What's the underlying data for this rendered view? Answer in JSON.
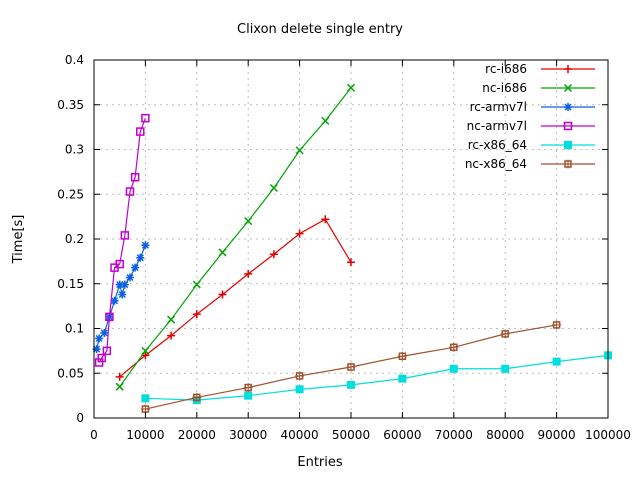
{
  "window": {
    "title": "Clixon delete single entry"
  },
  "chart_data": {
    "type": "line",
    "title": "Clixon delete single entry",
    "xlabel": "Entries",
    "ylabel": "Time[s]",
    "xlim": [
      0,
      100000
    ],
    "ylim": [
      0,
      0.4
    ],
    "xticks": [
      0,
      10000,
      20000,
      30000,
      40000,
      50000,
      60000,
      70000,
      80000,
      90000,
      100000
    ],
    "yticks": [
      0,
      0.05,
      0.1,
      0.15,
      0.2,
      0.25,
      0.3,
      0.35,
      0.4
    ],
    "grid": true,
    "grid_style": "dotted-gray",
    "legend_position": "top-right-inside",
    "series": [
      {
        "name": "rc-i686",
        "color": "#e60000",
        "marker": "plus",
        "x": [
          5000,
          10000,
          15000,
          20000,
          25000,
          30000,
          35000,
          40000,
          45000,
          50000
        ],
        "y": [
          0.046,
          0.07,
          0.092,
          0.116,
          0.138,
          0.161,
          0.183,
          0.206,
          0.222,
          0.174
        ]
      },
      {
        "name": "nc-i686",
        "color": "#00a400",
        "marker": "cross",
        "x": [
          5000,
          10000,
          15000,
          20000,
          25000,
          30000,
          35000,
          40000,
          45000,
          50000
        ],
        "y": [
          0.035,
          0.075,
          0.11,
          0.149,
          0.185,
          0.22,
          0.257,
          0.299,
          0.332,
          0.369
        ]
      },
      {
        "name": "rc-armv7l",
        "color": "#0a60e0",
        "marker": "asterisk",
        "x": [
          500,
          1000,
          2000,
          3000,
          4000,
          5000,
          5500,
          6000,
          7000,
          8000,
          9000,
          10000
        ],
        "y": [
          0.077,
          0.089,
          0.095,
          0.113,
          0.131,
          0.149,
          0.138,
          0.149,
          0.157,
          0.168,
          0.179,
          0.193
        ]
      },
      {
        "name": "nc-armv7l",
        "color": "#c000d0",
        "marker": "open-square",
        "x": [
          1000,
          1500,
          2500,
          3000,
          4000,
          5000,
          6000,
          7000,
          8000,
          9000,
          10000
        ],
        "y": [
          0.062,
          0.067,
          0.075,
          0.113,
          0.168,
          0.172,
          0.204,
          0.253,
          0.269,
          0.32,
          0.335
        ]
      },
      {
        "name": "rc-x86_64",
        "color": "#00dede",
        "marker": "filled-square",
        "x": [
          10000,
          20000,
          30000,
          40000,
          50000,
          60000,
          70000,
          80000,
          90000,
          100000
        ],
        "y": [
          0.022,
          0.02,
          0.025,
          0.032,
          0.037,
          0.044,
          0.055,
          0.055,
          0.063,
          0.07
        ]
      },
      {
        "name": "nc-x86_64",
        "color": "#a0522d",
        "marker": "square-plus",
        "x": [
          10000,
          20000,
          30000,
          40000,
          50000,
          60000,
          70000,
          80000,
          90000
        ],
        "y": [
          0.01,
          0.023,
          0.034,
          0.047,
          0.057,
          0.069,
          0.079,
          0.094,
          0.104
        ]
      }
    ]
  }
}
